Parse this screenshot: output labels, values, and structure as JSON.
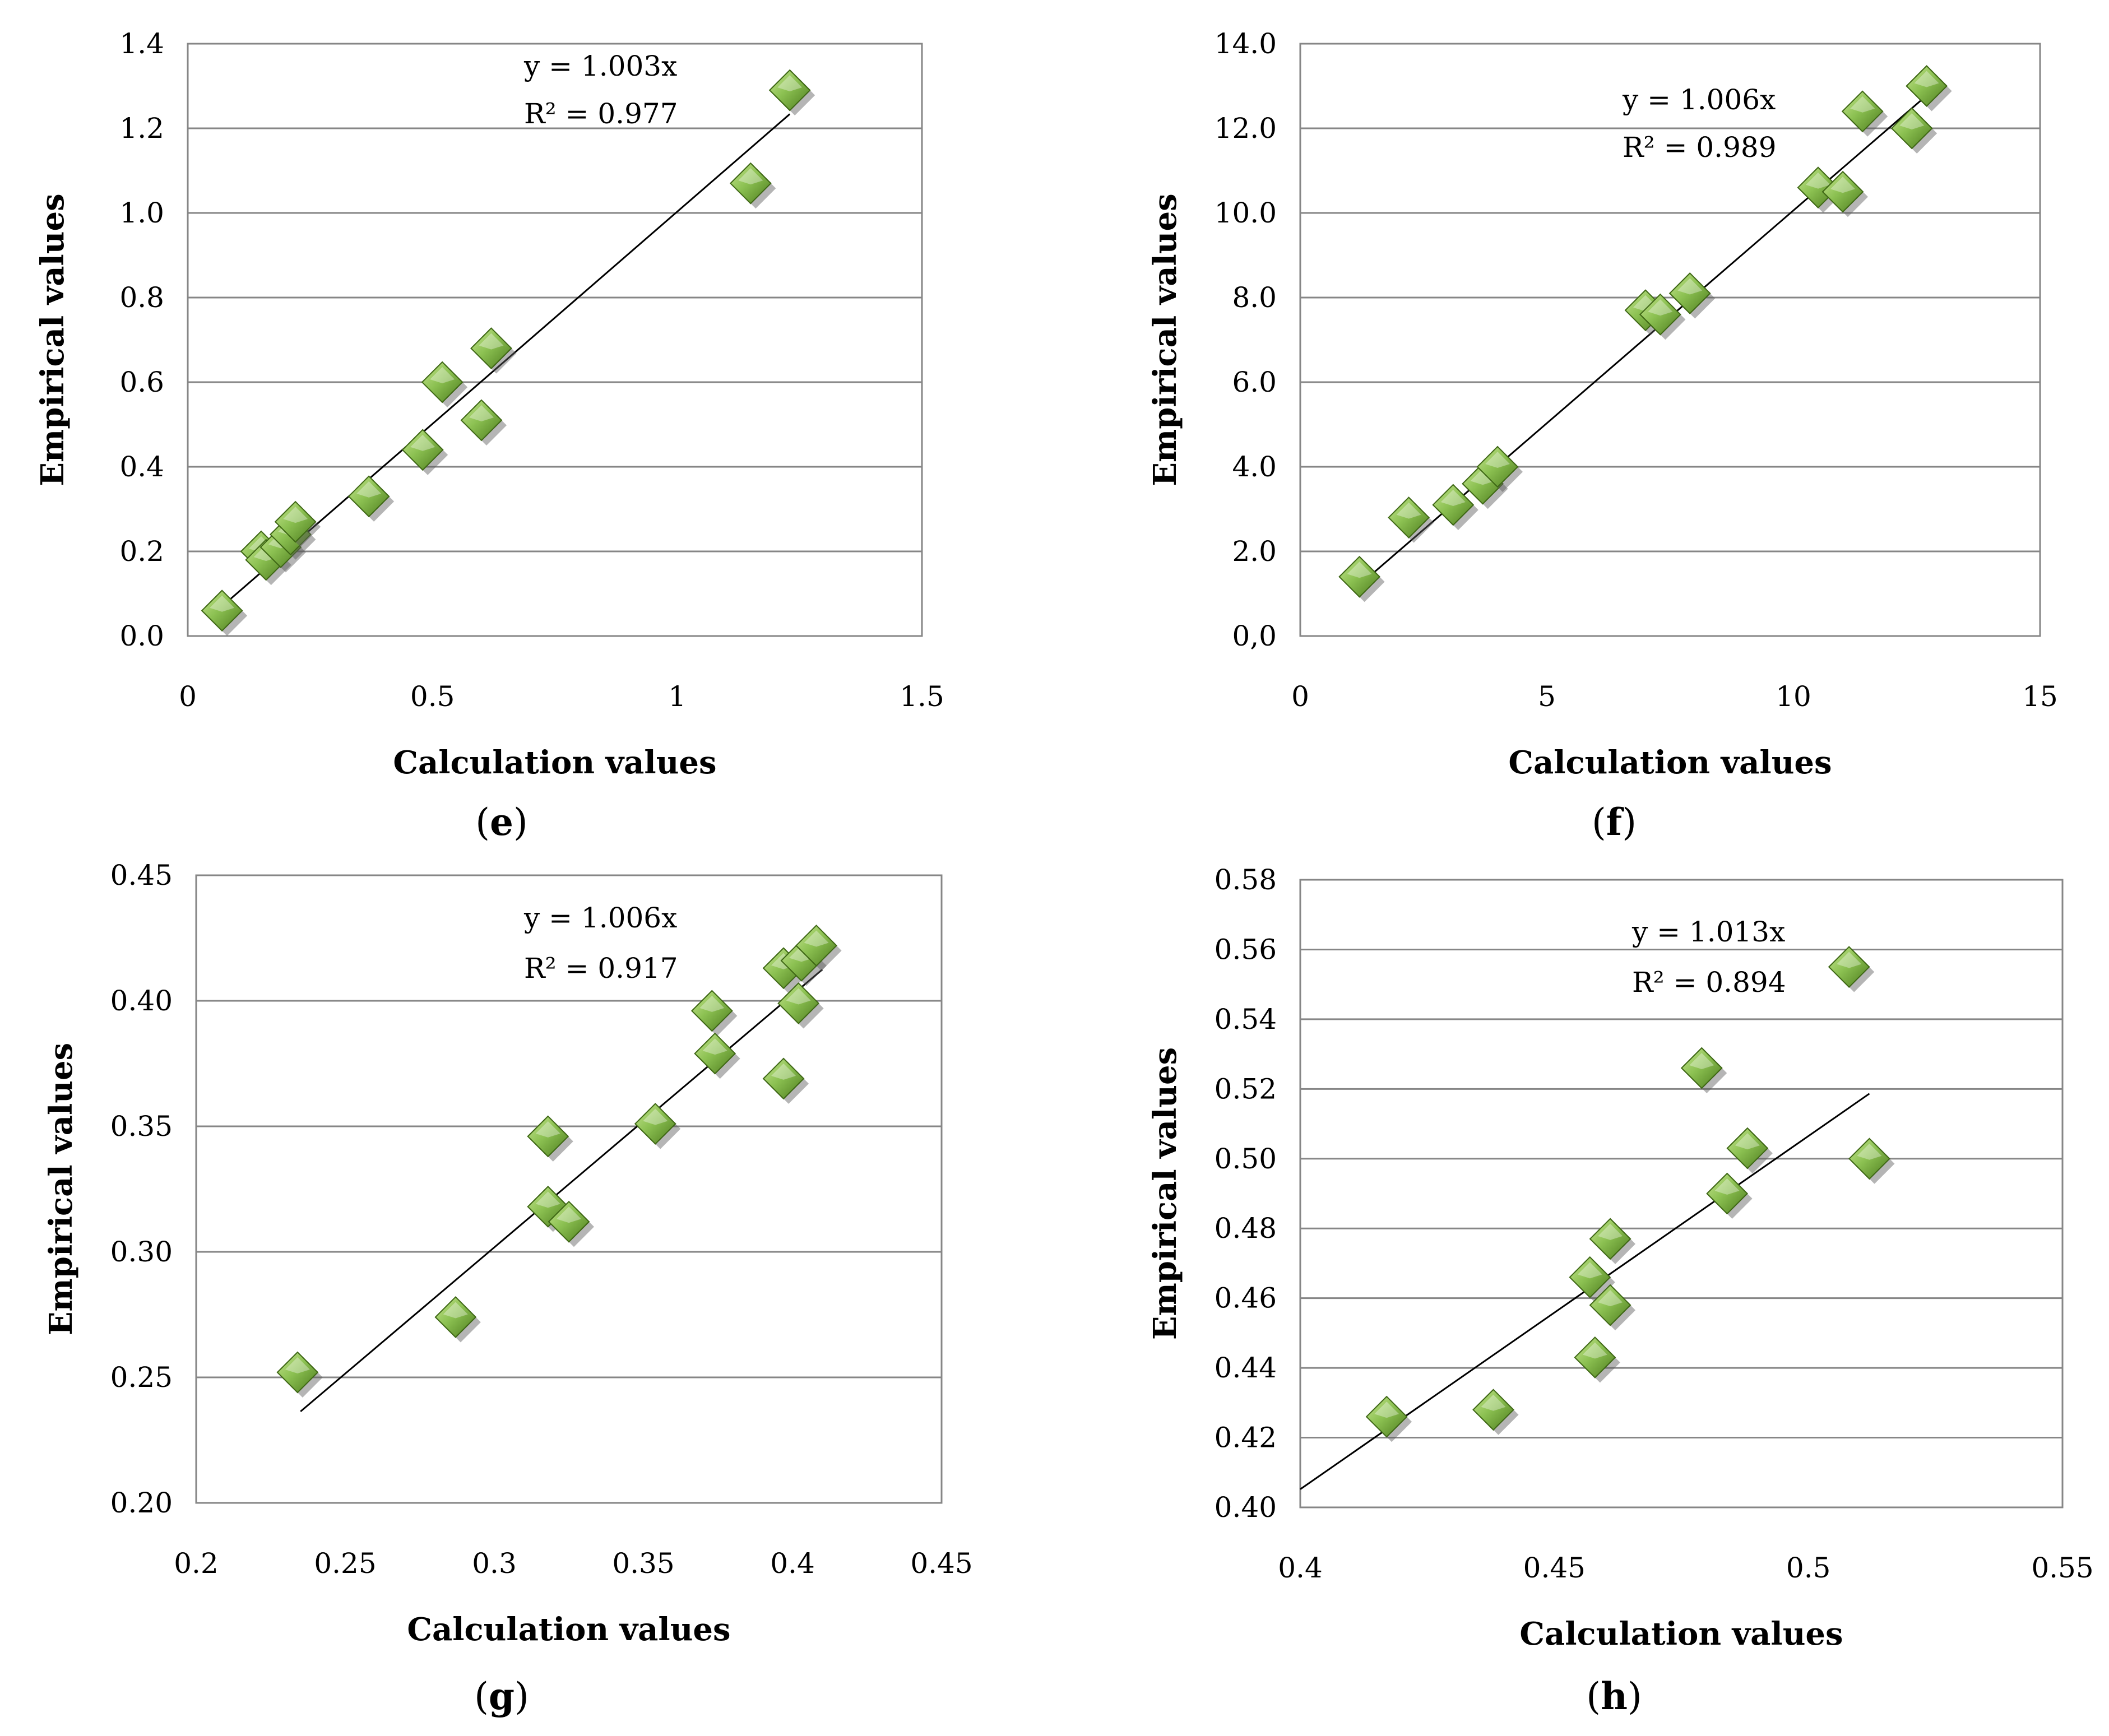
{
  "figure": {
    "panel_ids": [
      "e",
      "f",
      "g",
      "h"
    ]
  },
  "chart_data": [
    {
      "id": "e",
      "type": "scatter",
      "xlabel": "Calculation values",
      "ylabel": "Empirical values",
      "xlim": [
        0,
        1.5
      ],
      "ylim": [
        0,
        1.4
      ],
      "xticks": [
        "0",
        "0.5",
        "1",
        "1.5"
      ],
      "yticks": [
        "0.0",
        "0.2",
        "0.4",
        "0.6",
        "0.8",
        "1.0",
        "1.2",
        "1.4"
      ],
      "trend": {
        "slope": 1.003,
        "x_range": [
          0.07,
          1.23
        ]
      },
      "equation": "y = 1.003x",
      "r2": "R² = 0.977",
      "label_open": "(",
      "label": "e",
      "label_close": ")",
      "points": [
        [
          0.07,
          0.06
        ],
        [
          0.15,
          0.2
        ],
        [
          0.16,
          0.18
        ],
        [
          0.19,
          0.21
        ],
        [
          0.21,
          0.24
        ],
        [
          0.22,
          0.27
        ],
        [
          0.37,
          0.33
        ],
        [
          0.48,
          0.44
        ],
        [
          0.52,
          0.6
        ],
        [
          0.6,
          0.51
        ],
        [
          0.62,
          0.68
        ],
        [
          1.15,
          1.07
        ],
        [
          1.23,
          1.29
        ]
      ]
    },
    {
      "id": "f",
      "type": "scatter",
      "xlabel": "Calculation values",
      "ylabel": "Empirical values",
      "xlim": [
        0,
        15
      ],
      "ylim": [
        0,
        14
      ],
      "xticks": [
        "0",
        "5",
        "10",
        "15"
      ],
      "yticks": [
        "0,0",
        "2.0",
        "4.0",
        "6.0",
        "8.0",
        "10.0",
        "12.0",
        "14.0"
      ],
      "trend": {
        "slope": 1.006,
        "x_range": [
          1.2,
          12.7
        ]
      },
      "equation": "y = 1.006x",
      "r2": "R² = 0.989",
      "label_open": "(",
      "label": "f",
      "label_close": ")",
      "points": [
        [
          1.2,
          1.4
        ],
        [
          2.2,
          2.8
        ],
        [
          3.1,
          3.1
        ],
        [
          3.7,
          3.6
        ],
        [
          4.0,
          4.0
        ],
        [
          7.0,
          7.7
        ],
        [
          7.3,
          7.6
        ],
        [
          7.9,
          8.1
        ],
        [
          10.5,
          10.6
        ],
        [
          11.0,
          10.5
        ],
        [
          11.4,
          12.4
        ],
        [
          12.4,
          12.0
        ],
        [
          12.7,
          13.0
        ]
      ]
    },
    {
      "id": "g",
      "type": "scatter",
      "xlabel": "Calculation values",
      "ylabel": "Empirical values",
      "xlim": [
        0.2,
        0.45
      ],
      "ylim": [
        0.2,
        0.45
      ],
      "xticks": [
        "0.2",
        "0.25",
        "0.3",
        "0.35",
        "0.4",
        "0.45"
      ],
      "yticks": [
        "0.20",
        "0.25",
        "0.30",
        "0.35",
        "0.40",
        "0.45"
      ],
      "trend": {
        "slope": 1.006,
        "x_range": [
          0.235,
          0.41
        ]
      },
      "equation": "y = 1.006x",
      "r2": "R² = 0.917",
      "label_open": "(",
      "label": "g",
      "label_close": ")",
      "points": [
        [
          0.234,
          0.252
        ],
        [
          0.287,
          0.274
        ],
        [
          0.318,
          0.346
        ],
        [
          0.318,
          0.318
        ],
        [
          0.325,
          0.312
        ],
        [
          0.354,
          0.351
        ],
        [
          0.373,
          0.396
        ],
        [
          0.374,
          0.379
        ],
        [
          0.397,
          0.413
        ],
        [
          0.397,
          0.369
        ],
        [
          0.402,
          0.399
        ],
        [
          0.403,
          0.416
        ],
        [
          0.408,
          0.422
        ]
      ]
    },
    {
      "id": "h",
      "type": "scatter",
      "xlabel": "Calculation values",
      "ylabel": "Empirical values",
      "xlim": [
        0.4,
        0.55
      ],
      "ylim": [
        0.4,
        0.58
      ],
      "xticks": [
        "0.4",
        "0.45",
        "0.5",
        "0.55"
      ],
      "yticks": [
        "0.40",
        "0.42",
        "0.44",
        "0.46",
        "0.48",
        "0.50",
        "0.52",
        "0.54",
        "0.56",
        "0.58"
      ],
      "trend": {
        "slope": 1.013,
        "x_range": [
          0.4,
          0.512
        ]
      },
      "equation": "y = 1.013x",
      "r2": "R² = 0.894",
      "label_open": "(",
      "label": "h",
      "label_close": ")",
      "points": [
        [
          0.417,
          0.426
        ],
        [
          0.438,
          0.428
        ],
        [
          0.457,
          0.466
        ],
        [
          0.458,
          0.443
        ],
        [
          0.461,
          0.477
        ],
        [
          0.461,
          0.458
        ],
        [
          0.479,
          0.526
        ],
        [
          0.484,
          0.49
        ],
        [
          0.488,
          0.503
        ],
        [
          0.508,
          0.555
        ],
        [
          0.512,
          0.5
        ]
      ]
    }
  ]
}
